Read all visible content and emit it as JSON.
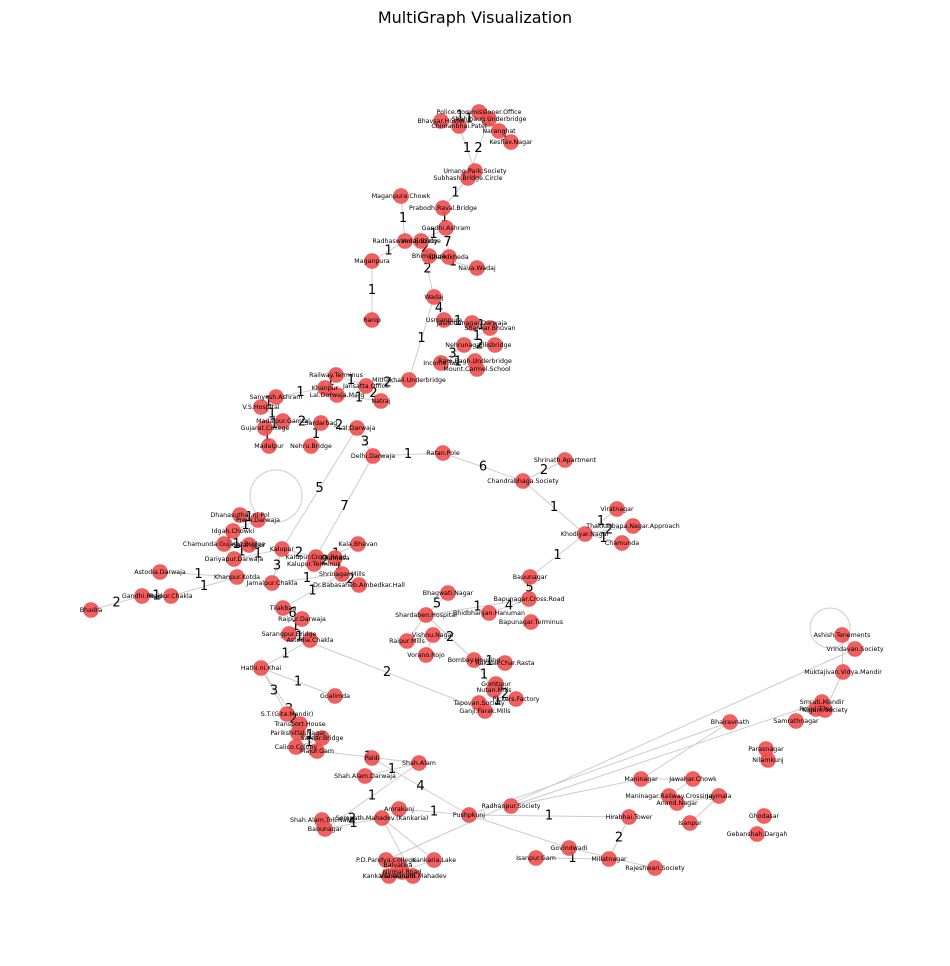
{
  "title": "MultiGraph Visualization",
  "colors": {
    "node": "#f05252",
    "edge": "#cccccc"
  },
  "nodes": [
    "Police.Commissioner.Office",
    "Bhavsar.Hostel",
    "Chimanbhai.Patel",
    "Shahibaug.Underbridge",
    "Naranghat",
    "Keshav.Nagar",
    "Umang.Park.Society",
    "Subhash.Bridge.Circle",
    "Maganpura.Chowk",
    "Prabodh.Raval.Bridge",
    "Gandhi.Ashram",
    "Radhaswami.Society",
    "Vadaj.Bridge",
    "Bhimjipura",
    "Chandkheda",
    "Nava.Wadaj",
    "Maganpura",
    "Wadaj",
    "Ranip",
    "Usmanpura",
    "Jashodanagar.Darwaja",
    "Shankar.Bhuvan",
    "Nehrunagar",
    "Ellisbridge",
    "Income.Tax",
    "Ram.Bagh.Underbridge",
    "Mount.Carmel.School",
    "Railway.Terminus",
    "Khanpur",
    "Mithakhali.Underbridge",
    "Jansatta.Office",
    "Lal.Darwaja.Marg",
    "Natraj",
    "Sanyash.Ashram",
    "V.S.Hospital",
    "Madalpur.Gamtal",
    "Gujarat.College",
    "Sardarbag",
    "Lal.Darwaja",
    "Madalpur",
    "Nehru.Bridge",
    "Delhi.Darwaja",
    "Ratan.Pole",
    "Shrinath.Apartment",
    "Chandrabhaga.Society",
    "Viratnagar",
    "Thakkarbapa.Nagar.Approach",
    "Khodiyar.Nagar",
    "Chamunda",
    "Dhanasuthar.ni.Pol",
    "Prem.Darwaja",
    "Idgah.Chowki",
    "Kalupur",
    "Chamunda.Gujarat.Bridge",
    "Sarangpur",
    "Dariyapur.Darwaja",
    "Kalupur.Cross.Road",
    "Kalupur.Terminus",
    "Kala.Bhavan",
    "Astodia.Darwaja",
    "Khamasa",
    "Shrinagar.Mills",
    "Khanpur.Kotda",
    "Jamalpur.Chakla",
    "Dr.Babasaheb.Ambedkar.Hall",
    "Gandhi.Road",
    "Raipur.Chakla",
    "Bhadra",
    "Bapunagar",
    "Bhagwati.Nagar",
    "Bapunagar.Cross.Road",
    "Tilakbag",
    "Shardaben.Hospital",
    "Bhidbhanjan.Hanuman",
    "Bapunagar.Terminus",
    "Raipur.Darwaja",
    "Sarangpur.Bridge",
    "Astodia.Chakla",
    "Raipur.Mills",
    "Vishnu.Nagar",
    "Vorano.Rojo",
    "Bombay.Housing",
    "Rakhial.Char.Rasta",
    "Gomtipur",
    "Nutan.Mills",
    "Pickers.Factory",
    "Tapovan.Society",
    "Ganji.Farak.Mills",
    "Hathi.ni.Khai",
    "Goalimda",
    "S.T.(Gita.Mandir)",
    "Transport.House",
    "Parikshitlal.Nagar",
    "Sardar.Bridge",
    "Calico.Colony",
    "Majur.Gam",
    "Paldi",
    "Shah.Alam",
    "Shah.Alam.Darwaja",
    "Shah.Alam.Toll.Naka",
    "Babunagar",
    "Somnath.Mahadev.(Kankaria)",
    "Amrakunj",
    "Pushpkunj",
    "Radhanpur.Society",
    "Bhairavnath",
    "Maninagar",
    "Jawahar.Chowk",
    "Maninagar.Railway.Crossing",
    "Anand.Nagar",
    "Jaymala",
    "Isanpur",
    "Hirabhai.Tower",
    "Govindwadi",
    "Millatnagar",
    "Rajeshwari.Society",
    "Isanpur.Gam",
    "Nilamkunj",
    "Ghodasar",
    "Gebanshah.Dargah",
    "Parasnagar",
    "Samrathnagar",
    "Royal.Tiles",
    "Smruti.Mandir",
    "Nigam.Society",
    "Muktajivan.Vidya.Mandir",
    "Ashish.Tenements",
    "Vrindavan.Society",
    "P.D.Pandya.College",
    "Balvatika",
    "Kankaria.Lake",
    "Kankaria.Ground",
    "Vishwanath.Mahadev",
    "Nirmal.Road",
    "Kankaria.Terminus"
  ],
  "edge_labels": [
    "1",
    "1",
    "7",
    "1",
    "1",
    "1",
    "1",
    "2",
    "1",
    "1",
    "1",
    "1",
    "7",
    "2",
    "1",
    "1",
    "1",
    "2",
    "4",
    "1",
    "1",
    "1",
    "2",
    "3",
    "1",
    "1",
    "1",
    "2",
    "1",
    "1",
    "1",
    "1",
    "2",
    "1",
    "1",
    "1",
    "1",
    "1",
    "2",
    "1",
    "2",
    "3",
    "1",
    "6",
    "2",
    "1",
    "1",
    "2",
    "1",
    "1",
    "5",
    "4",
    "1",
    "5",
    "2",
    "1",
    "1",
    "2",
    "1",
    "1",
    "7",
    "5",
    "1",
    "1",
    "1",
    "1",
    "1",
    "1",
    "2",
    "1",
    "2",
    "1",
    "2",
    "1",
    "1",
    "1",
    "1",
    "2",
    "3",
    "1",
    "1",
    "6",
    "1",
    "1",
    "2",
    "1",
    "1",
    "3",
    "2",
    "1",
    "1",
    "1",
    "3",
    "1",
    "1",
    "1",
    "1",
    "2",
    "4",
    "1",
    "1",
    "2",
    "1"
  ]
}
